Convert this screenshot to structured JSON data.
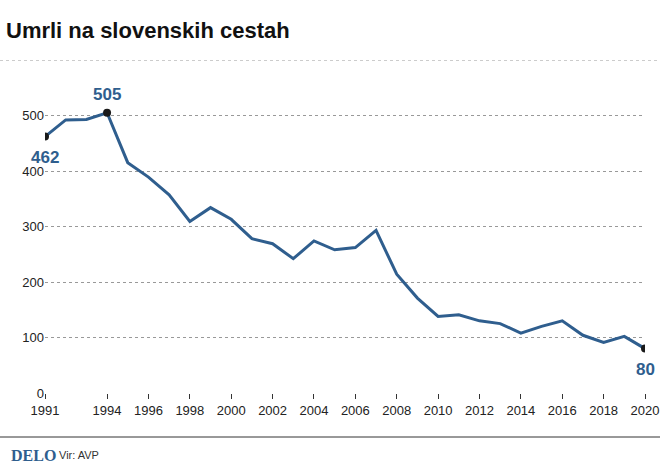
{
  "chart_data": {
    "type": "line",
    "title": "Umrli na slovenskih cestah",
    "x": [
      1991,
      1992,
      1993,
      1994,
      1995,
      1996,
      1997,
      1998,
      1999,
      2000,
      2001,
      2002,
      2003,
      2004,
      2005,
      2006,
      2007,
      2008,
      2009,
      2010,
      2011,
      2012,
      2013,
      2014,
      2015,
      2016,
      2017,
      2018,
      2019,
      2020
    ],
    "values": [
      462,
      492,
      493,
      505,
      415,
      389,
      357,
      309,
      334,
      313,
      278,
      269,
      242,
      274,
      258,
      262,
      293,
      214,
      171,
      138,
      141,
      130,
      125,
      108,
      120,
      130,
      104,
      91,
      102,
      80
    ],
    "color": "#2f5e8e",
    "xlim": [
      1991,
      2020
    ],
    "xticks": [
      1991,
      1994,
      1996,
      1998,
      2000,
      2002,
      2004,
      2006,
      2008,
      2010,
      2012,
      2014,
      2016,
      2018,
      2020
    ],
    "ylim": [
      0,
      600
    ],
    "yticks": [
      0,
      100,
      200,
      300,
      400,
      500
    ],
    "grid": true,
    "annotations": [
      {
        "x": 1991,
        "y": 462,
        "text": "462"
      },
      {
        "x": 1994,
        "y": 505,
        "text": "505"
      },
      {
        "x": 2020,
        "y": 80,
        "text": "80"
      }
    ],
    "logo": "DELO",
    "source": "Vir: AVP"
  }
}
